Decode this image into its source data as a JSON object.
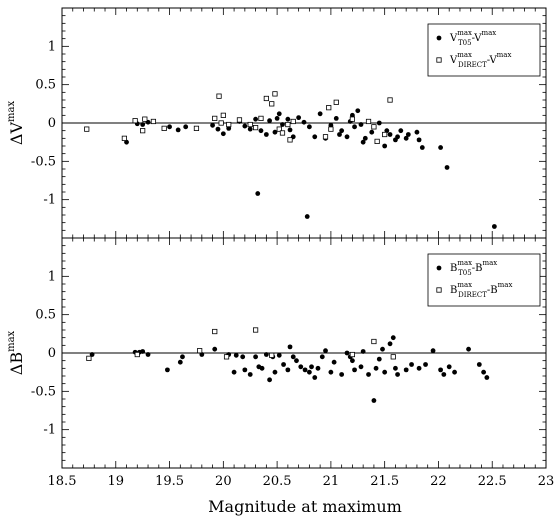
{
  "chart_data": [
    {
      "type": "scatter",
      "ylabel": "ΔV",
      "ylabel_sup": "max",
      "xlim": [
        18.5,
        23
      ],
      "ylim": [
        -1.5,
        1.5
      ],
      "y_ticks": [
        -1,
        -0.5,
        0,
        0.5,
        1
      ],
      "y_tick_labels": [
        "-1",
        "-0.5",
        "0",
        "0.5",
        "1"
      ],
      "reference_line_y": 0,
      "legend_position": "top-right",
      "legend": [
        {
          "marker": "filled-circle",
          "label": "V",
          "sup": "max",
          "sub": "T05",
          "tail": "-V",
          "tail_sup": "max"
        },
        {
          "marker": "open-square",
          "label": "V",
          "sup": "max",
          "sub": "DIRECT",
          "tail": "-V",
          "tail_sup": "max"
        }
      ],
      "series": [
        {
          "marker": "filled-circle",
          "points": [
            [
              19.1,
              -0.25
            ],
            [
              19.2,
              -0.01
            ],
            [
              19.25,
              -0.02
            ],
            [
              19.3,
              0.01
            ],
            [
              19.5,
              -0.05
            ],
            [
              19.58,
              -0.09
            ],
            [
              19.65,
              -0.05
            ],
            [
              19.9,
              -0.03
            ],
            [
              19.95,
              -0.08
            ],
            [
              20.0,
              -0.14
            ],
            [
              20.05,
              -0.07
            ],
            [
              20.15,
              0.02
            ],
            [
              20.2,
              -0.04
            ],
            [
              20.25,
              -0.08
            ],
            [
              20.3,
              0.05
            ],
            [
              20.32,
              -0.92
            ],
            [
              20.35,
              -0.1
            ],
            [
              20.4,
              -0.15
            ],
            [
              20.43,
              0.03
            ],
            [
              20.48,
              -0.12
            ],
            [
              20.5,
              0.06
            ],
            [
              20.52,
              0.12
            ],
            [
              20.55,
              -0.02
            ],
            [
              20.6,
              0.05
            ],
            [
              20.62,
              -0.09
            ],
            [
              20.65,
              -0.18
            ],
            [
              20.7,
              0.07
            ],
            [
              20.75,
              0.01
            ],
            [
              20.78,
              -1.22
            ],
            [
              20.8,
              -0.05
            ],
            [
              20.85,
              -0.18
            ],
            [
              20.9,
              0.12
            ],
            [
              20.95,
              -0.2
            ],
            [
              21.0,
              -0.03
            ],
            [
              21.05,
              0.06
            ],
            [
              21.08,
              -0.15
            ],
            [
              21.1,
              -0.1
            ],
            [
              21.15,
              -0.18
            ],
            [
              21.18,
              0.02
            ],
            [
              21.2,
              0.1
            ],
            [
              21.22,
              -0.05
            ],
            [
              21.25,
              0.16
            ],
            [
              21.28,
              -0.02
            ],
            [
              21.3,
              -0.25
            ],
            [
              21.32,
              -0.2
            ],
            [
              21.38,
              -0.12
            ],
            [
              21.4,
              -0.05
            ],
            [
              21.45,
              0.0
            ],
            [
              21.5,
              -0.3
            ],
            [
              21.52,
              -0.1
            ],
            [
              21.55,
              -0.15
            ],
            [
              21.6,
              -0.22
            ],
            [
              21.62,
              -0.18
            ],
            [
              21.65,
              -0.1
            ],
            [
              21.7,
              -0.2
            ],
            [
              21.72,
              -0.15
            ],
            [
              21.8,
              -0.12
            ],
            [
              21.82,
              -0.22
            ],
            [
              21.85,
              -0.32
            ],
            [
              22.02,
              -0.32
            ],
            [
              22.08,
              -0.58
            ],
            [
              22.52,
              -1.35
            ]
          ]
        },
        {
          "marker": "open-square",
          "points": [
            [
              18.73,
              -0.08
            ],
            [
              19.08,
              -0.2
            ],
            [
              19.18,
              0.03
            ],
            [
              19.25,
              -0.1
            ],
            [
              19.27,
              0.05
            ],
            [
              19.35,
              0.02
            ],
            [
              19.45,
              -0.07
            ],
            [
              19.75,
              -0.07
            ],
            [
              19.92,
              0.06
            ],
            [
              19.96,
              0.35
            ],
            [
              19.98,
              0.0
            ],
            [
              20.0,
              0.1
            ],
            [
              20.05,
              -0.02
            ],
            [
              20.15,
              0.04
            ],
            [
              20.25,
              -0.02
            ],
            [
              20.3,
              -0.06
            ],
            [
              20.35,
              0.06
            ],
            [
              20.4,
              0.32
            ],
            [
              20.45,
              0.25
            ],
            [
              20.48,
              0.38
            ],
            [
              20.52,
              -0.08
            ],
            [
              20.55,
              -0.13
            ],
            [
              20.6,
              -0.02
            ],
            [
              20.62,
              -0.22
            ],
            [
              20.65,
              0.02
            ],
            [
              20.95,
              -0.18
            ],
            [
              20.98,
              0.2
            ],
            [
              21.0,
              -0.08
            ],
            [
              21.05,
              0.27
            ],
            [
              21.2,
              0.05
            ],
            [
              21.35,
              0.02
            ],
            [
              21.4,
              -0.05
            ],
            [
              21.43,
              -0.24
            ],
            [
              21.5,
              -0.15
            ],
            [
              21.55,
              0.3
            ]
          ]
        }
      ]
    },
    {
      "type": "scatter",
      "ylabel": "ΔB",
      "ylabel_sup": "max",
      "xlabel": "Magnitude at maximum",
      "xlim": [
        18.5,
        23
      ],
      "ylim": [
        -1.5,
        1.5
      ],
      "x_ticks": [
        18.5,
        19,
        19.5,
        20,
        20.5,
        21,
        21.5,
        22,
        22.5,
        23
      ],
      "x_tick_labels": [
        "18.5",
        "19",
        "19.5",
        "20",
        "20.5",
        "21",
        "21.5",
        "22",
        "22.5",
        "23"
      ],
      "y_ticks": [
        -1,
        -0.5,
        0,
        0.5,
        1
      ],
      "y_tick_labels": [
        "-1",
        "-0.5",
        "0",
        "0.5",
        "1"
      ],
      "reference_line_y": 0,
      "legend_position": "top-right",
      "legend": [
        {
          "marker": "filled-circle",
          "label": "B",
          "sup": "max",
          "sub": "T05",
          "tail": "-B",
          "tail_sup": "max"
        },
        {
          "marker": "open-square",
          "label": "B",
          "sup": "max",
          "sub": "DIRECT",
          "tail": "-B",
          "tail_sup": "max"
        }
      ],
      "series": [
        {
          "marker": "filled-circle",
          "points": [
            [
              18.78,
              -0.02
            ],
            [
              19.18,
              0.01
            ],
            [
              19.22,
              0.01
            ],
            [
              19.25,
              0.02
            ],
            [
              19.3,
              -0.02
            ],
            [
              19.48,
              -0.22
            ],
            [
              19.6,
              -0.12
            ],
            [
              19.62,
              -0.05
            ],
            [
              19.8,
              -0.02
            ],
            [
              19.92,
              0.05
            ],
            [
              20.05,
              -0.02
            ],
            [
              20.1,
              -0.25
            ],
            [
              20.12,
              -0.03
            ],
            [
              20.18,
              -0.05
            ],
            [
              20.2,
              -0.22
            ],
            [
              20.25,
              -0.28
            ],
            [
              20.3,
              -0.05
            ],
            [
              20.33,
              -0.18
            ],
            [
              20.36,
              -0.2
            ],
            [
              20.4,
              -0.02
            ],
            [
              20.43,
              -0.35
            ],
            [
              20.46,
              -0.05
            ],
            [
              20.48,
              -0.25
            ],
            [
              20.52,
              -0.03
            ],
            [
              20.56,
              -0.15
            ],
            [
              20.6,
              -0.22
            ],
            [
              20.62,
              0.08
            ],
            [
              20.65,
              -0.05
            ],
            [
              20.68,
              -0.1
            ],
            [
              20.72,
              -0.18
            ],
            [
              20.76,
              -0.22
            ],
            [
              20.8,
              -0.25
            ],
            [
              20.82,
              -0.18
            ],
            [
              20.85,
              -0.32
            ],
            [
              20.88,
              -0.2
            ],
            [
              20.92,
              -0.05
            ],
            [
              20.95,
              0.03
            ],
            [
              21.0,
              -0.25
            ],
            [
              21.03,
              -0.12
            ],
            [
              21.1,
              -0.28
            ],
            [
              21.15,
              0.0
            ],
            [
              21.18,
              -0.05
            ],
            [
              21.2,
              -0.1
            ],
            [
              21.22,
              -0.22
            ],
            [
              21.28,
              -0.18
            ],
            [
              21.3,
              0.02
            ],
            [
              21.35,
              -0.28
            ],
            [
              21.4,
              -0.62
            ],
            [
              21.42,
              -0.2
            ],
            [
              21.45,
              -0.08
            ],
            [
              21.48,
              0.05
            ],
            [
              21.5,
              -0.25
            ],
            [
              21.55,
              0.12
            ],
            [
              21.58,
              0.2
            ],
            [
              21.6,
              -0.2
            ],
            [
              21.62,
              -0.28
            ],
            [
              21.7,
              -0.22
            ],
            [
              21.75,
              -0.15
            ],
            [
              21.82,
              -0.2
            ],
            [
              21.88,
              -0.15
            ],
            [
              21.95,
              0.03
            ],
            [
              22.02,
              -0.22
            ],
            [
              22.05,
              -0.28
            ],
            [
              22.1,
              -0.18
            ],
            [
              22.15,
              -0.25
            ],
            [
              22.28,
              0.05
            ],
            [
              22.38,
              -0.15
            ],
            [
              22.42,
              -0.25
            ],
            [
              22.45,
              -0.32
            ]
          ]
        },
        {
          "marker": "open-square",
          "points": [
            [
              18.75,
              -0.07
            ],
            [
              19.2,
              -0.02
            ],
            [
              19.78,
              0.03
            ],
            [
              19.92,
              0.28
            ],
            [
              20.03,
              -0.05
            ],
            [
              20.3,
              0.3
            ],
            [
              20.45,
              -0.03
            ],
            [
              21.2,
              -0.02
            ],
            [
              21.4,
              0.15
            ],
            [
              21.58,
              -0.05
            ]
          ]
        }
      ]
    }
  ]
}
